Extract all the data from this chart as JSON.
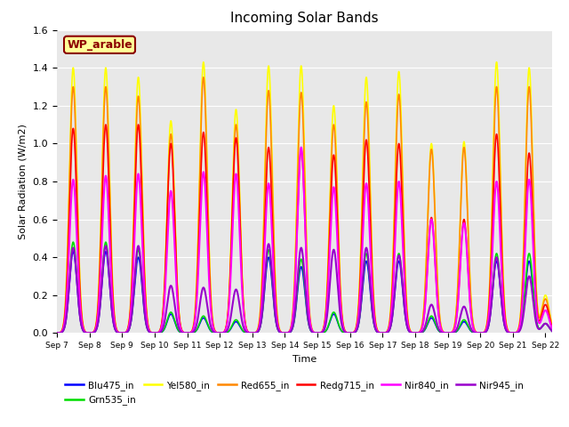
{
  "title": "Incoming Solar Bands",
  "xlabel": "Time",
  "ylabel": "Solar Radiation (W/m2)",
  "site_label": "WP_arable",
  "ylim": [
    0,
    1.6
  ],
  "xlim": [
    7.0,
    22.2
  ],
  "background_color": "#e8e8e8",
  "series": [
    {
      "key": "blu",
      "label": "Blu475_in",
      "color": "#0000ff",
      "lw": 1.2
    },
    {
      "key": "grn",
      "label": "Grn535_in",
      "color": "#00dd00",
      "lw": 1.2
    },
    {
      "key": "yel",
      "label": "Yel580_in",
      "color": "#ffff00",
      "lw": 1.2
    },
    {
      "key": "red",
      "label": "Red655_in",
      "color": "#ff8800",
      "lw": 1.2
    },
    {
      "key": "redg",
      "label": "Redg715_in",
      "color": "#ff0000",
      "lw": 1.2
    },
    {
      "key": "nir840",
      "label": "Nir840_in",
      "color": "#ff00ff",
      "lw": 1.5
    },
    {
      "key": "nir945",
      "label": "Nir945_in",
      "color": "#9900cc",
      "lw": 1.5
    }
  ],
  "peaks": [
    {
      "day": 7.5,
      "blu": 0.43,
      "grn": 0.48,
      "yel": 1.4,
      "red": 1.3,
      "redg": 1.08,
      "nir840": 0.81,
      "nir945": 0.45
    },
    {
      "day": 8.5,
      "blu": 0.43,
      "grn": 0.48,
      "yel": 1.4,
      "red": 1.3,
      "redg": 1.1,
      "nir840": 0.83,
      "nir945": 0.46
    },
    {
      "day": 9.5,
      "blu": 0.4,
      "grn": 0.44,
      "yel": 1.35,
      "red": 1.25,
      "redg": 1.1,
      "nir840": 0.84,
      "nir945": 0.46
    },
    {
      "day": 10.5,
      "blu": 0.1,
      "grn": 0.11,
      "yel": 1.12,
      "red": 1.05,
      "redg": 1.0,
      "nir840": 0.75,
      "nir945": 0.25
    },
    {
      "day": 11.5,
      "blu": 0.08,
      "grn": 0.09,
      "yel": 1.43,
      "red": 1.35,
      "redg": 1.06,
      "nir840": 0.85,
      "nir945": 0.24
    },
    {
      "day": 12.5,
      "blu": 0.06,
      "grn": 0.07,
      "yel": 1.18,
      "red": 1.1,
      "redg": 1.03,
      "nir840": 0.84,
      "nir945": 0.23
    },
    {
      "day": 13.5,
      "blu": 0.4,
      "grn": 0.44,
      "yel": 1.41,
      "red": 1.28,
      "redg": 0.98,
      "nir840": 0.79,
      "nir945": 0.47
    },
    {
      "day": 14.5,
      "blu": 0.35,
      "grn": 0.39,
      "yel": 1.41,
      "red": 1.27,
      "redg": 0.97,
      "nir840": 0.98,
      "nir945": 0.45
    },
    {
      "day": 15.5,
      "blu": 0.1,
      "grn": 0.11,
      "yel": 1.2,
      "red": 1.1,
      "redg": 0.94,
      "nir840": 0.77,
      "nir945": 0.44
    },
    {
      "day": 16.5,
      "blu": 0.38,
      "grn": 0.42,
      "yel": 1.35,
      "red": 1.22,
      "redg": 1.02,
      "nir840": 0.79,
      "nir945": 0.45
    },
    {
      "day": 17.5,
      "blu": 0.38,
      "grn": 0.42,
      "yel": 1.38,
      "red": 1.26,
      "redg": 1.0,
      "nir840": 0.8,
      "nir945": 0.41
    },
    {
      "day": 18.5,
      "blu": 0.08,
      "grn": 0.09,
      "yel": 1.0,
      "red": 0.97,
      "redg": 0.61,
      "nir840": 0.6,
      "nir945": 0.15
    },
    {
      "day": 19.5,
      "blu": 0.06,
      "grn": 0.07,
      "yel": 1.01,
      "red": 0.98,
      "redg": 0.6,
      "nir840": 0.58,
      "nir945": 0.14
    },
    {
      "day": 20.5,
      "blu": 0.38,
      "grn": 0.42,
      "yel": 1.43,
      "red": 1.3,
      "redg": 1.05,
      "nir840": 0.8,
      "nir945": 0.4
    },
    {
      "day": 21.5,
      "blu": 0.38,
      "grn": 0.42,
      "yel": 1.4,
      "red": 1.3,
      "redg": 0.95,
      "nir840": 0.81,
      "nir945": 0.3
    },
    {
      "day": 22.0,
      "blu": 0.05,
      "grn": 0.05,
      "yel": 0.2,
      "red": 0.18,
      "redg": 0.15,
      "nir840": 0.12,
      "nir945": 0.05
    }
  ],
  "sigma": 0.115,
  "n_points": 5000
}
